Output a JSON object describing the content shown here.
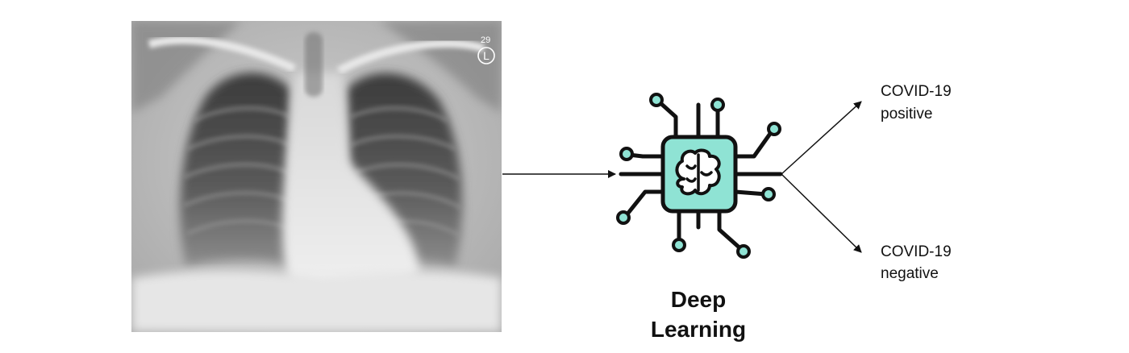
{
  "xray": {
    "marker_number": "29",
    "side_marker": "L"
  },
  "model": {
    "label_line1": "Deep",
    "label_line2": "Learning",
    "icon": "ai-chip-brain-icon"
  },
  "outputs": [
    {
      "line1": "COVID-19",
      "line2": "positive"
    },
    {
      "line1": "COVID-19",
      "line2": "negative"
    }
  ],
  "colors": {
    "chip_fill": "#8fe3d4",
    "chip_stroke": "#111111",
    "node_fill": "#8fe3d4",
    "arrow": "#111111"
  }
}
